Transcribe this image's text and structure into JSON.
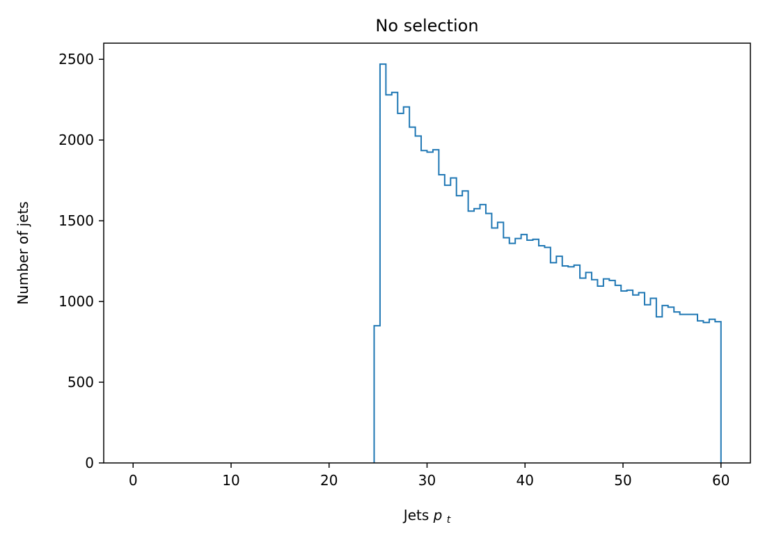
{
  "chart_data": {
    "type": "histogram",
    "title": "No selection",
    "xlabel": "Jets",
    "xlabel_math": "p",
    "xlabel_math_sub": "t",
    "ylabel": "Number of jets",
    "xlim": [
      -3,
      63
    ],
    "ylim": [
      0,
      2600
    ],
    "xticks": [
      0,
      10,
      20,
      30,
      40,
      50,
      60
    ],
    "yticks": [
      0,
      500,
      1000,
      1500,
      2000,
      2500
    ],
    "grid": false,
    "legend": "none",
    "color": "#1f77b4",
    "bin_width": 0.6,
    "bin_start": 24.6,
    "counts": [
      850,
      2470,
      2280,
      2295,
      2165,
      2205,
      2080,
      2025,
      1935,
      1925,
      1940,
      1785,
      1720,
      1765,
      1655,
      1685,
      1560,
      1575,
      1600,
      1545,
      1455,
      1490,
      1395,
      1360,
      1390,
      1415,
      1380,
      1385,
      1345,
      1335,
      1240,
      1280,
      1220,
      1215,
      1225,
      1145,
      1180,
      1135,
      1095,
      1140,
      1130,
      1100,
      1065,
      1070,
      1040,
      1055,
      980,
      1020,
      905,
      975,
      965,
      935,
      920,
      920,
      920,
      880,
      870,
      890,
      875
    ]
  }
}
